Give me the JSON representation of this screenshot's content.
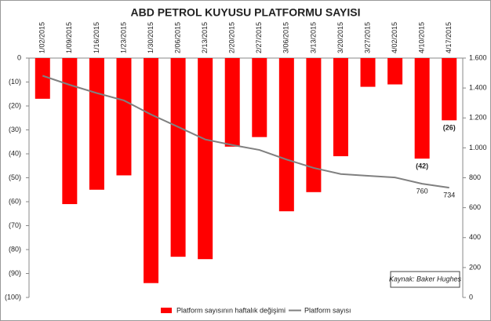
{
  "chart_data": {
    "type": "bar_line",
    "title": "ABD PETROL KUYUSU PLATFORMU SAYISI",
    "categories": [
      "1/02/2015",
      "1/09/2015",
      "1/16/2015",
      "1/23/2015",
      "1/30/2015",
      "2/06/2015",
      "2/13/2015",
      "2/20/2015",
      "2/27/2015",
      "3/06/2015",
      "3/13/2015",
      "3/20/2015",
      "3/27/2015",
      "4/02/2015",
      "4/10/2015",
      "4/17/2015"
    ],
    "series": [
      {
        "name": "Platform sayısının haftalık değişimi",
        "color": "#ff0000",
        "kind": "bar",
        "values": [
          -17,
          -61,
          -55,
          -49,
          -94,
          -83,
          -84,
          -37,
          -33,
          -64,
          -56,
          -41,
          -12,
          -11,
          -42,
          -26
        ],
        "value_labels": [
          null,
          null,
          null,
          null,
          null,
          null,
          null,
          null,
          null,
          null,
          null,
          null,
          null,
          null,
          "(42)",
          "(26)"
        ]
      },
      {
        "name": "Platform sayısı",
        "color": "#808080",
        "kind": "line",
        "axis": "y2",
        "values": [
          1482,
          1421,
          1366,
          1317,
          1223,
          1140,
          1056,
          1019,
          986,
          922,
          866,
          825,
          813,
          802,
          760,
          734
        ],
        "value_labels": [
          null,
          null,
          null,
          null,
          null,
          null,
          null,
          null,
          null,
          null,
          null,
          null,
          null,
          null,
          "760",
          "734"
        ]
      }
    ],
    "ylim": [
      0,
      -100
    ],
    "yticks": [
      0,
      {
        "value": -10,
        "label": "(10)"
      },
      {
        "value": -20,
        "label": "(20)"
      },
      {
        "value": -30,
        "label": "(30)"
      },
      {
        "value": -40,
        "label": "(40)"
      },
      {
        "value": -50,
        "label": "(50)"
      },
      {
        "value": -60,
        "label": "(60)"
      },
      {
        "value": -70,
        "label": "(70)"
      },
      {
        "value": -80,
        "label": "(80)"
      },
      {
        "value": -90,
        "label": "(90)"
      },
      {
        "value": -100,
        "label": "(100)"
      }
    ],
    "y2lim": [
      0,
      1600
    ],
    "y2ticks": [
      0,
      200,
      400,
      600,
      800,
      {
        "value": 1000,
        "label": "1.000"
      },
      {
        "value": 1200,
        "label": "1.200"
      },
      {
        "value": 1400,
        "label": "1.400"
      },
      {
        "value": 1600,
        "label": "1.600"
      }
    ],
    "annotation": "Kaynak: Baker Hughes",
    "legend": "bottom"
  }
}
